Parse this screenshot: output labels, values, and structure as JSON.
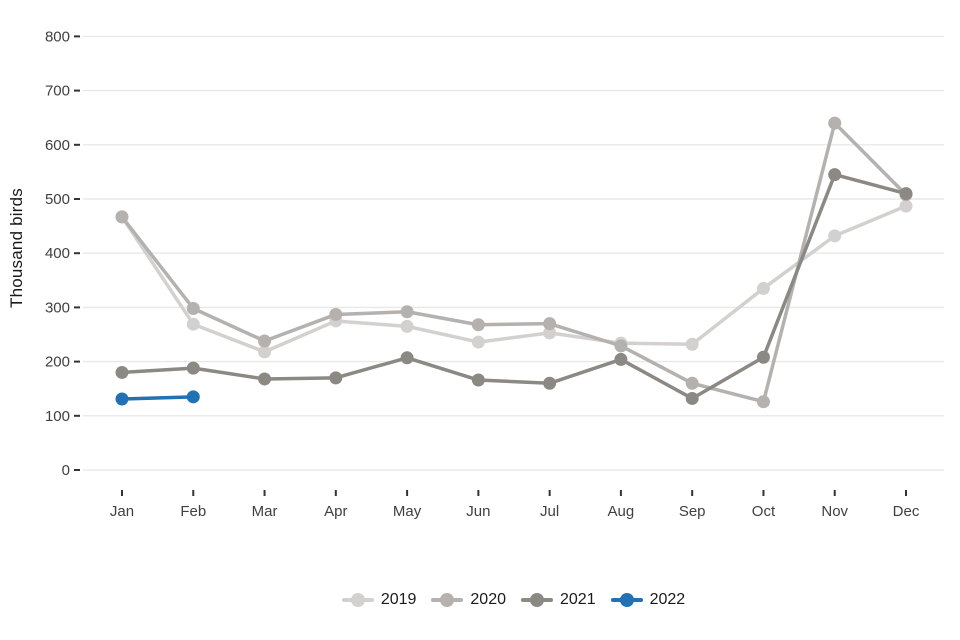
{
  "chart_data": {
    "type": "line",
    "title": "",
    "xlabel": "",
    "ylabel": "Thousand birds",
    "categories": [
      "Jan",
      "Feb",
      "Mar",
      "Apr",
      "May",
      "Jun",
      "Jul",
      "Aug",
      "Sep",
      "Oct",
      "Nov",
      "Dec"
    ],
    "ylim": [
      0,
      800
    ],
    "yticks": [
      0,
      100,
      200,
      300,
      400,
      500,
      600,
      700,
      800
    ],
    "grid": "horizontal-major-only",
    "legend_position": "bottom-center",
    "series": [
      {
        "name": "2019",
        "color": "#d3d1cf",
        "values": [
          467,
          269,
          218,
          275,
          265,
          236,
          253,
          234,
          232,
          335,
          432,
          487
        ]
      },
      {
        "name": "2020",
        "color": "#b4b1ae",
        "values": [
          467,
          298,
          238,
          287,
          292,
          268,
          270,
          229,
          160,
          126,
          640,
          508
        ]
      },
      {
        "name": "2021",
        "color": "#8c8884",
        "values": [
          180,
          188,
          168,
          170,
          207,
          166,
          160,
          204,
          132,
          208,
          545,
          510
        ]
      },
      {
        "name": "2022",
        "color": "#2171b5",
        "values": [
          131,
          135,
          null,
          null,
          null,
          null,
          null,
          null,
          null,
          null,
          null,
          null
        ]
      }
    ]
  },
  "style": {
    "background": "#ffffff",
    "gridline_color": "#e9e8e8",
    "tick_mark_color": "#333333",
    "axis_text_color": "#404040",
    "axis_title_color": "#1a1a1a",
    "legend_text_color": "#1a1a1a"
  }
}
